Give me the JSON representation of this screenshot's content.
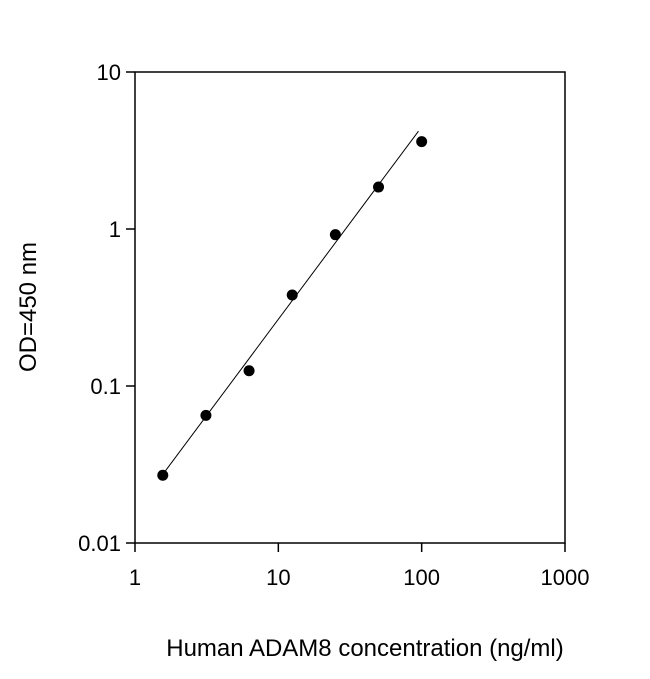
{
  "chart_data": {
    "type": "scatter",
    "x_label": "Human ADAM8 concentration (ng/ml)",
    "y_label": "OD=450 nm",
    "x": [
      1.5625,
      3.125,
      6.25,
      12.5,
      25,
      50,
      100
    ],
    "values": [
      0.027,
      0.065,
      0.125,
      0.38,
      0.92,
      1.85,
      3.6
    ],
    "color": "#000000",
    "trendline": {
      "x": [
        1.5,
        95
      ],
      "y": [
        0.026,
        4.2
      ]
    },
    "x_log": true,
    "y_log": true,
    "xlim": [
      1,
      1000
    ],
    "ylim": [
      0.01,
      10
    ],
    "xticks": [
      1,
      10,
      100,
      1000
    ],
    "yticks": [
      0.01,
      0.1,
      1,
      10
    ]
  }
}
